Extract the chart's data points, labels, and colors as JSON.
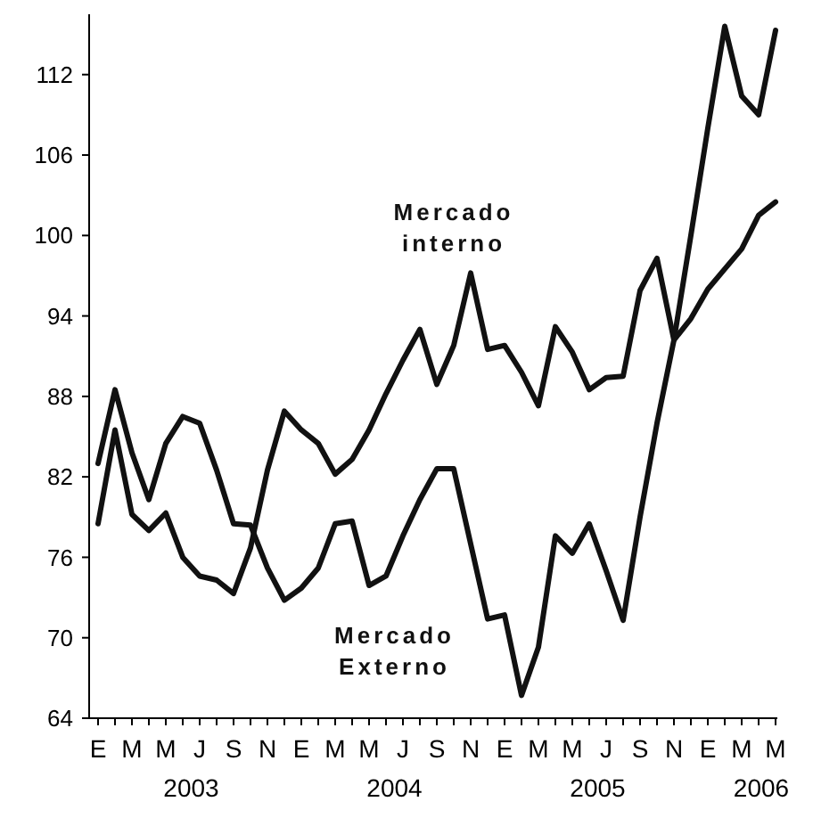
{
  "chart_data": {
    "type": "line",
    "categories": [
      "E",
      null,
      "M",
      null,
      "M",
      null,
      "J",
      null,
      "S",
      null,
      "N",
      null,
      "E",
      null,
      "M",
      null,
      "M",
      null,
      "J",
      null,
      "S",
      null,
      "N",
      null,
      "E",
      null,
      "M",
      null,
      "M",
      null,
      "J",
      null,
      "S",
      null,
      "N",
      null,
      "E",
      null,
      "M",
      null,
      "M"
    ],
    "series": [
      {
        "name": "Mercado interno",
        "color": "#111111",
        "values": [
          78.5,
          85.5,
          79.2,
          78,
          79.3,
          76,
          74.6,
          74.3,
          73.3,
          76.7,
          82.5,
          86.9,
          85.5,
          84.5,
          82.2,
          83.3,
          85.5,
          88.2,
          90.7,
          93,
          88.9,
          91.8,
          97.2,
          91.5,
          91.8,
          89.8,
          87.3,
          93.2,
          91.3,
          88.5,
          89.4,
          89.5,
          95.9,
          98.3,
          92.2,
          93.8,
          96,
          97.5,
          99,
          101.5,
          102.5
        ]
      },
      {
        "name": "Mercado Externo",
        "color": "#111111",
        "values": [
          83,
          88.5,
          83.8,
          80.3,
          84.5,
          86.5,
          86,
          82.5,
          78.5,
          78.4,
          75.2,
          72.8,
          73.7,
          75.2,
          78.5,
          78.7,
          73.9,
          74.6,
          77.6,
          80.3,
          82.6,
          82.6,
          77,
          71.4,
          71.7,
          65.7,
          69.3,
          77.6,
          76.3,
          78.5,
          75,
          71.3,
          79,
          86,
          92.2,
          100,
          108,
          115.6,
          110.4,
          109,
          115.3
        ]
      }
    ],
    "ylim": [
      64,
      116.5
    ],
    "yticks": [
      64,
      70,
      76,
      82,
      88,
      94,
      100,
      106,
      112
    ],
    "annotations": [
      "2003",
      "2004",
      "2005",
      "2006"
    ],
    "grid": false,
    "marker": "none",
    "line_style": "solid"
  }
}
